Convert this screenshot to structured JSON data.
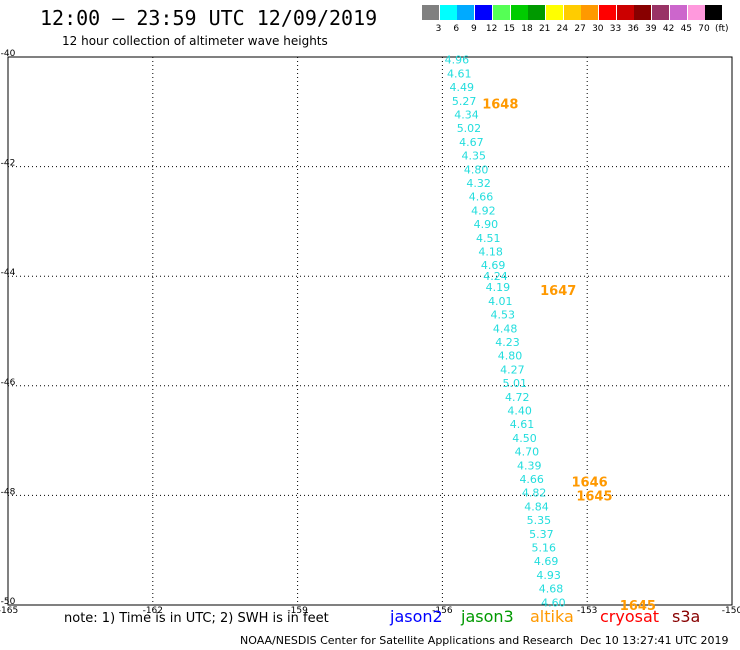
{
  "header": {
    "title": "12:00 — 23:59 UTC 12/09/2019",
    "subtitle": "12 hour collection of altimeter wave heights"
  },
  "color_scale": {
    "unit": "(ft)",
    "steps": [
      {
        "label": "3",
        "color": "#808080"
      },
      {
        "label": "6",
        "color": "#00ffff"
      },
      {
        "label": "9",
        "color": "#00aaff"
      },
      {
        "label": "12",
        "color": "#0000ff"
      },
      {
        "label": "15",
        "color": "#55ff55"
      },
      {
        "label": "18",
        "color": "#00cc00"
      },
      {
        "label": "21",
        "color": "#009900"
      },
      {
        "label": "24",
        "color": "#ffff00"
      },
      {
        "label": "27",
        "color": "#ffcc00"
      },
      {
        "label": "30",
        "color": "#ff9900"
      },
      {
        "label": "33",
        "color": "#ff0000"
      },
      {
        "label": "36",
        "color": "#cc0000"
      },
      {
        "label": "39",
        "color": "#880000"
      },
      {
        "label": "42",
        "color": "#993366"
      },
      {
        "label": "45",
        "color": "#cc66cc"
      },
      {
        "label": "70",
        "color": "#ff99dd"
      },
      {
        "label": "",
        "color": "#000000"
      }
    ]
  },
  "footer": {
    "note": "note: 1) Time is in UTC; 2) SWH is in feet",
    "satellites": [
      {
        "name": "jason2",
        "color": "#0000ff"
      },
      {
        "name": "jason3",
        "color": "#009900"
      },
      {
        "name": "altika",
        "color": "#ff9900"
      },
      {
        "name": "cryosat",
        "color": "#ff0000"
      },
      {
        "name": "s3a",
        "color": "#880000"
      }
    ],
    "credit": "NOAA/NESDIS Center for Satellite Applications and Research",
    "timestamp": "Dec 10 13:27:41 UTC 2019"
  },
  "chart_data": {
    "type": "scatter",
    "title": "12:00 — 23:59 UTC 12/09/2019",
    "xlabel": "",
    "ylabel": "",
    "xlim": [
      -165,
      -150
    ],
    "ylim": [
      -50,
      -40
    ],
    "x_ticks": [
      -165,
      -162,
      -159,
      -156,
      -153,
      -150
    ],
    "x_tick_labels": [
      "-165",
      "-162",
      "-159",
      "-156",
      "-153",
      "-150"
    ],
    "y_ticks": [
      -40,
      -42,
      -44,
      -46,
      -48,
      -50
    ],
    "y_tick_labels": [
      "-40",
      "-42",
      "-44",
      "-46",
      "-48",
      "-50"
    ],
    "grid": true,
    "text_color": "#22dddd",
    "time_color": "#ff9900",
    "points": [
      {
        "lon": -155.7,
        "lat": -40.05,
        "swh": "4.96"
      },
      {
        "lon": -155.65,
        "lat": -40.3,
        "swh": "4.61"
      },
      {
        "lon": -155.6,
        "lat": -40.55,
        "swh": "4.49"
      },
      {
        "lon": -155.55,
        "lat": -40.8,
        "swh": "5.27"
      },
      {
        "lon": -155.5,
        "lat": -41.05,
        "swh": "4.34"
      },
      {
        "lon": -155.45,
        "lat": -41.3,
        "swh": "5.02"
      },
      {
        "lon": -155.4,
        "lat": -41.55,
        "swh": "4.67"
      },
      {
        "lon": -155.35,
        "lat": -41.8,
        "swh": "4.35"
      },
      {
        "lon": -155.3,
        "lat": -42.05,
        "swh": "4.80"
      },
      {
        "lon": -155.25,
        "lat": -42.3,
        "swh": "4.32"
      },
      {
        "lon": -155.2,
        "lat": -42.55,
        "swh": "4.66"
      },
      {
        "lon": -155.15,
        "lat": -42.8,
        "swh": "4.92"
      },
      {
        "lon": -155.1,
        "lat": -43.05,
        "swh": "4.90"
      },
      {
        "lon": -155.05,
        "lat": -43.3,
        "swh": "4.51"
      },
      {
        "lon": -155.0,
        "lat": -43.55,
        "swh": "4.18"
      },
      {
        "lon": -154.95,
        "lat": -43.8,
        "swh": "4.69"
      },
      {
        "lon": -154.9,
        "lat": -44.0,
        "swh": "4.24"
      },
      {
        "lon": -154.85,
        "lat": -44.2,
        "swh": "4.19"
      },
      {
        "lon": -154.8,
        "lat": -44.45,
        "swh": "4.01"
      },
      {
        "lon": -154.75,
        "lat": -44.7,
        "swh": "4.53"
      },
      {
        "lon": -154.7,
        "lat": -44.95,
        "swh": "4.48"
      },
      {
        "lon": -154.65,
        "lat": -45.2,
        "swh": "4.23"
      },
      {
        "lon": -154.6,
        "lat": -45.45,
        "swh": "4.80"
      },
      {
        "lon": -154.55,
        "lat": -45.7,
        "swh": "4.27"
      },
      {
        "lon": -154.5,
        "lat": -45.95,
        "swh": "5.01"
      },
      {
        "lon": -154.45,
        "lat": -46.2,
        "swh": "4.72"
      },
      {
        "lon": -154.4,
        "lat": -46.45,
        "swh": "4.40"
      },
      {
        "lon": -154.35,
        "lat": -46.7,
        "swh": "4.61"
      },
      {
        "lon": -154.3,
        "lat": -46.95,
        "swh": "4.50"
      },
      {
        "lon": -154.25,
        "lat": -47.2,
        "swh": "4.70"
      },
      {
        "lon": -154.2,
        "lat": -47.45,
        "swh": "4.39"
      },
      {
        "lon": -154.15,
        "lat": -47.7,
        "swh": "4.66"
      },
      {
        "lon": -154.1,
        "lat": -47.95,
        "swh": "4.82"
      },
      {
        "lon": -154.05,
        "lat": -48.2,
        "swh": "4.84"
      },
      {
        "lon": -154.0,
        "lat": -48.45,
        "swh": "5.35"
      },
      {
        "lon": -153.95,
        "lat": -48.7,
        "swh": "5.37"
      },
      {
        "lon": -153.9,
        "lat": -48.95,
        "swh": "5.16"
      },
      {
        "lon": -153.85,
        "lat": -49.2,
        "swh": "4.69"
      },
      {
        "lon": -153.8,
        "lat": -49.45,
        "swh": "4.93"
      },
      {
        "lon": -153.75,
        "lat": -49.7,
        "swh": "4.68"
      },
      {
        "lon": -153.7,
        "lat": -49.95,
        "swh": "4.60"
      }
    ],
    "time_labels": [
      {
        "lon": -154.8,
        "lat": -40.85,
        "text": "1648"
      },
      {
        "lon": -153.6,
        "lat": -44.25,
        "text": "1647"
      },
      {
        "lon": -152.95,
        "lat": -47.75,
        "text": "1646"
      },
      {
        "lon": -152.85,
        "lat": -48.0,
        "text": "1645"
      },
      {
        "lon": -151.95,
        "lat": -50.0,
        "text": "1645"
      }
    ]
  }
}
